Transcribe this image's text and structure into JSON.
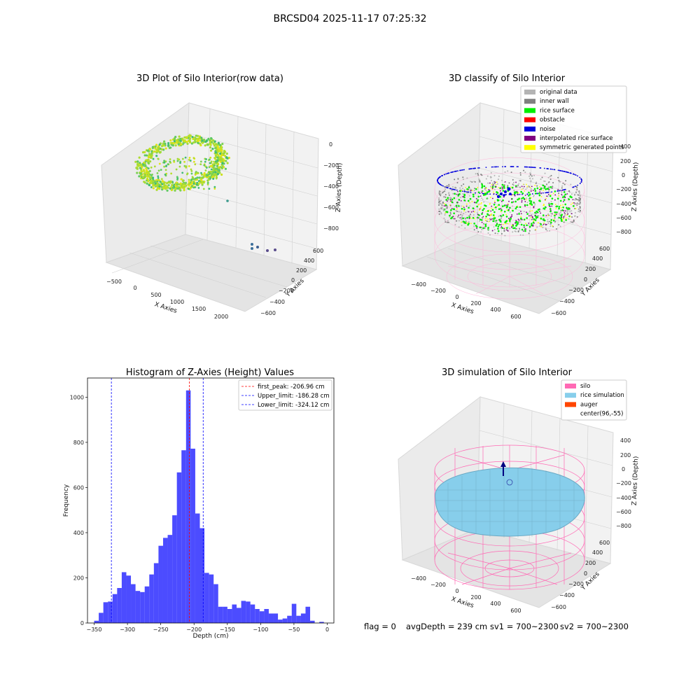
{
  "figure": {
    "title": "BRCSD04 2025-11-17 07:25:32"
  },
  "panels": {
    "raw": {
      "title": "3D Plot of Silo Interior(row data)",
      "xlabel": "X Axies",
      "ylabel": "Y Axies",
      "zlabel": "Z Axies (Depth)",
      "xticks": [
        "−500",
        "0",
        "500",
        "1000",
        "1500",
        "2000"
      ],
      "yticks": [
        "−600",
        "−400",
        "−200",
        "0",
        "200",
        "400",
        "600"
      ],
      "zticks": [
        "0",
        "−200",
        "−400",
        "−600",
        "−800"
      ]
    },
    "classify": {
      "title": "3D classify of Silo Interior",
      "xlabel": "X Axies",
      "ylabel": "Y Axies",
      "zlabel": "Z Axies (Depth)",
      "xticks": [
        "−400",
        "−200",
        "0",
        "200",
        "400",
        "600"
      ],
      "yticks": [
        "−600",
        "−400",
        "−200",
        "0",
        "200",
        "400",
        "600"
      ],
      "zticks": [
        "400",
        "200",
        "0",
        "−200",
        "−400",
        "−600",
        "−800"
      ],
      "legend": [
        {
          "label": "original data",
          "color": "#b4b4b4"
        },
        {
          "label": "inner wall",
          "color": "#808080"
        },
        {
          "label": "rice surface",
          "color": "#00ee00"
        },
        {
          "label": "obstacle",
          "color": "#ff0000"
        },
        {
          "label": "noise",
          "color": "#0000dd"
        },
        {
          "label": "interpolated rice surface",
          "color": "#800080"
        },
        {
          "label": "symmetric generated points",
          "color": "#ffff00"
        }
      ]
    },
    "simulation": {
      "title": "3D simulation of Silo Interior",
      "xlabel": "X Axies",
      "ylabel": "Y Axies",
      "zlabel": "Z Axies (Depth)",
      "xticks": [
        "−400",
        "−200",
        "0",
        "200",
        "400",
        "600"
      ],
      "yticks": [
        "−600",
        "−400",
        "−200",
        "0",
        "200",
        "400",
        "600"
      ],
      "zticks": [
        "400",
        "200",
        "0",
        "−200",
        "−400",
        "−600",
        "−800"
      ],
      "legend": [
        {
          "label": "silo",
          "color": "#ff69b4"
        },
        {
          "label": "rice simulation",
          "color": "#87ceeb"
        },
        {
          "label": "auger",
          "color": "#ff4500"
        },
        {
          "label": "center(96,-55)",
          "color": ""
        }
      ]
    }
  },
  "status": {
    "flag": "flag = 0",
    "avg_depth": "avgDepth = 239 cm",
    "sv1": "sv1 = 700~2300",
    "sv2": "sv2 = 700~2300"
  },
  "colors": {
    "histogram_bar": "#3333ff",
    "peak_line": "#ff0000",
    "limit_line": "#0000ff",
    "silo_wire": "#ff69b4",
    "rice_fill": "#87ceeb"
  },
  "chart_data": [
    {
      "type": "bar",
      "title": "Histogram of Z-Axies (Height) Values",
      "xlabel": "Depth (cm)",
      "ylabel": "Frequency",
      "xlim": [
        -360,
        10
      ],
      "ylim": [
        0,
        1085
      ],
      "xticks": [
        -350,
        -300,
        -250,
        -200,
        -150,
        -100,
        -50,
        0
      ],
      "xtick_labels": [
        "−350",
        "−300",
        "−250",
        "−200",
        "−150",
        "−100",
        "−50",
        "0"
      ],
      "yticks": [
        0,
        200,
        400,
        600,
        800,
        1000
      ],
      "ytick_labels": [
        "0",
        "200",
        "400",
        "600",
        "800",
        "1000"
      ],
      "bin_start": -350,
      "bin_width": 6.9,
      "values": [
        10,
        45,
        92,
        95,
        128,
        155,
        225,
        210,
        172,
        142,
        137,
        162,
        215,
        265,
        342,
        377,
        390,
        477,
        667,
        765,
        1030,
        772,
        485,
        420,
        222,
        215,
        172,
        72,
        72,
        62,
        82,
        67,
        98,
        95,
        82,
        62,
        52,
        62,
        42,
        42,
        15,
        20,
        32,
        85,
        32,
        42,
        72,
        10,
        0,
        5
      ],
      "reference_lines": [
        {
          "x": -206.96,
          "label": "first_peak: -206.96 cm",
          "color": "#ff0000"
        },
        {
          "x": -186.28,
          "label": "Upper_limit: -186.28 cm",
          "color": "#0000ff"
        },
        {
          "x": -324.12,
          "label": "Lower_limit: -324.12 cm",
          "color": "#0000ff"
        }
      ],
      "legend_position": "upper right",
      "grid": false
    }
  ]
}
